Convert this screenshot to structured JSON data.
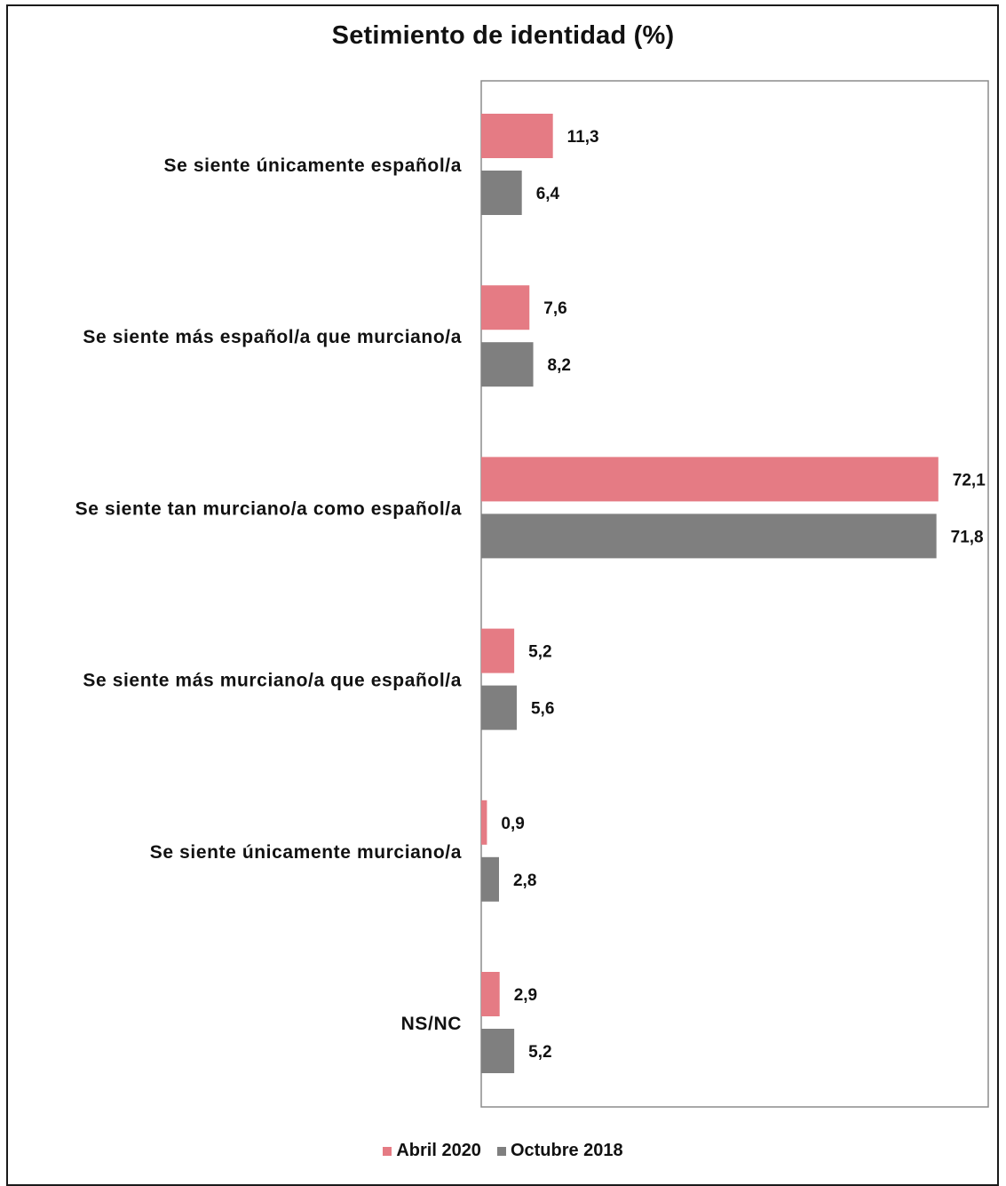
{
  "chart_data": {
    "type": "bar",
    "orientation": "horizontal",
    "title": "Setimiento de identidad (%)",
    "categories": [
      "Se siente únicamente español/a",
      "Se siente más español/a que murciano/a",
      "Se siente tan murciano/a como español/a",
      "Se siente más murciano/a que español/a",
      "Se siente únicamente murciano/a",
      "NS/NC"
    ],
    "series": [
      {
        "name": "Abril 2020",
        "color": "#e57b84",
        "values": [
          11.3,
          7.6,
          72.1,
          5.2,
          0.9,
          2.9
        ],
        "labels": [
          "11,3",
          "7,6",
          "72,1",
          "5,2",
          "0,9",
          "2,9"
        ]
      },
      {
        "name": "Octubre 2018",
        "color": "#7f7f7f",
        "values": [
          6.4,
          8.2,
          71.8,
          5.6,
          2.8,
          5.2
        ],
        "labels": [
          "6,4",
          "8,2",
          "71,8",
          "5,6",
          "2,8",
          "5,2"
        ]
      }
    ],
    "xlim": [
      0,
      80
    ],
    "grid": false,
    "legend_position": "bottom"
  }
}
